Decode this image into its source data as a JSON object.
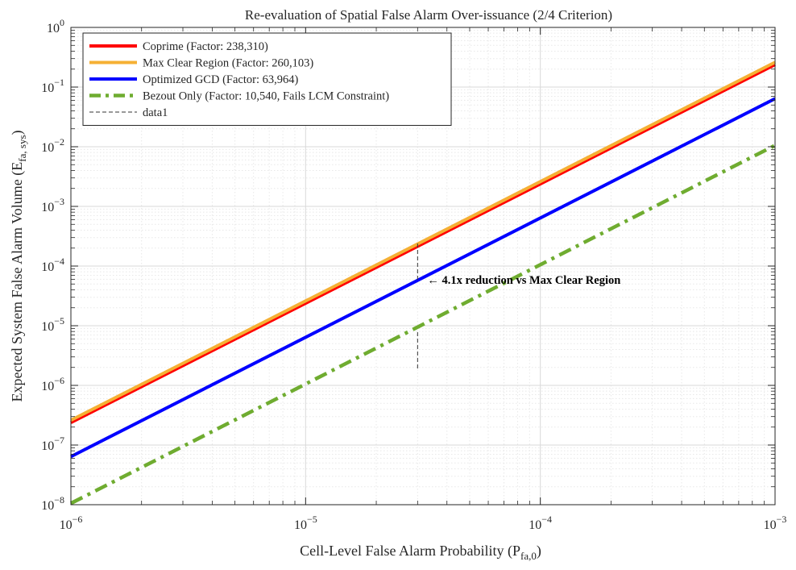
{
  "chart_data": {
    "type": "line",
    "title": "Re-evaluation of Spatial False Alarm Over-issuance (2/4 Criterion)",
    "xlabel": {
      "main": "Cell-Level False Alarm Probability (P",
      "sub": "fa,0",
      "tail": ")"
    },
    "ylabel": {
      "main": "Expected System False Alarm Volume (E",
      "sub": "fa, sys",
      "tail": ")"
    },
    "xscale": "log",
    "yscale": "log",
    "xlim": [
      1e-06,
      0.001
    ],
    "ylim": [
      1e-08,
      1
    ],
    "grid": true,
    "legend_position": "top-left",
    "x_ticks": [
      {
        "value": 1e-06,
        "base": "10",
        "exp": "−6"
      },
      {
        "value": 1e-05,
        "base": "10",
        "exp": "−5"
      },
      {
        "value": 0.0001,
        "base": "10",
        "exp": "−4"
      },
      {
        "value": 0.001,
        "base": "10",
        "exp": "−3"
      }
    ],
    "y_ticks": [
      {
        "value": 1e-08,
        "base": "10",
        "exp": "−8"
      },
      {
        "value": 1e-07,
        "base": "10",
        "exp": "−7"
      },
      {
        "value": 1e-06,
        "base": "10",
        "exp": "−6"
      },
      {
        "value": 1e-05,
        "base": "10",
        "exp": "−5"
      },
      {
        "value": 0.0001,
        "base": "10",
        "exp": "−4"
      },
      {
        "value": 0.001,
        "base": "10",
        "exp": "−3"
      },
      {
        "value": 0.01,
        "base": "10",
        "exp": "−2"
      },
      {
        "value": 0.1,
        "base": "10",
        "exp": "−1"
      },
      {
        "value": 1,
        "base": "10",
        "exp": "0"
      }
    ],
    "series": [
      {
        "name": "Coprime (Factor: 238,310)",
        "color": "#ff0000",
        "style": "solid",
        "factor": 0.23831,
        "x": [
          1e-06,
          0.001
        ],
        "y": [
          2.3831e-07,
          0.23831
        ]
      },
      {
        "name": "Max Clear Region (Factor: 260,103)",
        "color": "#f5b034",
        "style": "solid",
        "factor": 0.260103,
        "x": [
          1e-06,
          0.001
        ],
        "y": [
          2.60103e-07,
          0.260103
        ]
      },
      {
        "name": "Optimized GCD (Factor: 63,964)",
        "color": "#0000ff",
        "style": "solid",
        "factor": 0.063964,
        "x": [
          1e-06,
          0.001
        ],
        "y": [
          6.3964e-08,
          0.063964
        ]
      },
      {
        "name": "Bezout Only (Factor: 10,540, Fails LCM Constraint)",
        "color": "#6fac30",
        "style": "dashdot",
        "factor": 0.01054,
        "x": [
          1e-06,
          0.001
        ],
        "y": [
          1.054e-08,
          0.01054
        ]
      },
      {
        "name": "data1",
        "color": "#333333",
        "style": "dashed",
        "x": [
          3e-05,
          3e-05
        ],
        "y": [
          7.8e-06,
          1.92e-06
        ]
      }
    ],
    "annotations": [
      {
        "text": "← 4.1x reduction vs Max Clear Region",
        "x": 3.3e-05,
        "y": 5.9e-05
      }
    ],
    "annotation_marker": {
      "x": [
        3e-05,
        3e-05
      ],
      "y": [
        5.9e-05,
        0.00026
      ]
    }
  }
}
